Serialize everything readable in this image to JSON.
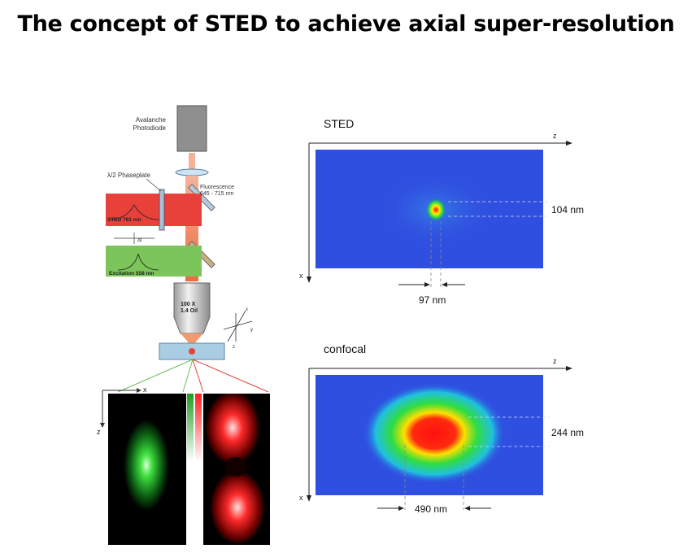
{
  "title": "The concept of STED to achieve axial super-resolution",
  "setup": {
    "detector_line1": "Avalanche",
    "detector_line2": "Photodiode",
    "phaseplate": "λ/2 Phaseplate",
    "fluorescence_line1": "Fluorescence",
    "fluorescence_line2": "645 - 715 nm",
    "sted_beam": "STED 781 nm",
    "delta_t": "Δt",
    "excitation_beam": "Excitation 558 nm",
    "objective_line1": "100 X",
    "objective_line2": "1.4 Oil",
    "axis_x": "x",
    "axis_y": "y",
    "axis_z": "z"
  },
  "sted_panel": {
    "label": "STED",
    "axis_z": "z",
    "axis_x": "x",
    "axial_size": "104 nm",
    "lateral_size": "97 nm"
  },
  "confocal_panel": {
    "label": "confocal",
    "axis_z": "z",
    "axis_x": "x",
    "axial_size": "244 nm",
    "lateral_size": "490 nm"
  },
  "bottom_images": {
    "axis_x": "x",
    "axis_z": "z"
  },
  "colors": {
    "sted_beam": "#e8413a",
    "excitation_beam": "#7cc55a",
    "fluorescence_beam": "#f08a50",
    "map_background": "#2f4fe0"
  }
}
